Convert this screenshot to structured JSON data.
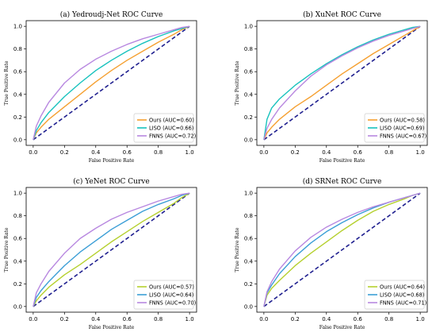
{
  "chart_data": [
    {
      "type": "line",
      "title": "(a) Yedroudj-Net ROC Curve",
      "xlabel": "False Positive Rate",
      "ylabel": "True Positive Rate",
      "xlim": [
        0,
        1
      ],
      "ylim": [
        0,
        1
      ],
      "xticks": [
        "0.0",
        "0.2",
        "0.4",
        "0.6",
        "0.8",
        "1.0"
      ],
      "yticks": [
        "0.0",
        "0.2",
        "0.4",
        "0.6",
        "0.8",
        "1.0"
      ],
      "legend_position": "bottom-right",
      "baseline": {
        "x": [
          0,
          1
        ],
        "y": [
          0,
          1
        ],
        "color": "#1f1f8f",
        "style": "dashed"
      },
      "series": [
        {
          "name": "Ours (AUC=0.60)",
          "color": "#f5a031",
          "x": [
            0,
            0.02,
            0.05,
            0.1,
            0.2,
            0.3,
            0.4,
            0.5,
            0.6,
            0.7,
            0.8,
            0.9,
            0.95,
            1.0
          ],
          "y": [
            0,
            0.06,
            0.11,
            0.18,
            0.29,
            0.4,
            0.51,
            0.61,
            0.7,
            0.78,
            0.86,
            0.93,
            0.97,
            1.0
          ]
        },
        {
          "name": "LISO (AUC=0.66)",
          "color": "#17c2bd",
          "x": [
            0,
            0.02,
            0.05,
            0.1,
            0.2,
            0.3,
            0.4,
            0.5,
            0.6,
            0.7,
            0.8,
            0.9,
            0.95,
            1.0
          ],
          "y": [
            0,
            0.08,
            0.15,
            0.24,
            0.38,
            0.5,
            0.61,
            0.7,
            0.78,
            0.85,
            0.91,
            0.96,
            0.98,
            1.0
          ]
        },
        {
          "name": "FNNS (AUC=0.72)",
          "color": "#b888e0",
          "x": [
            0,
            0.02,
            0.05,
            0.1,
            0.2,
            0.3,
            0.4,
            0.5,
            0.6,
            0.7,
            0.8,
            0.9,
            0.95,
            1.0
          ],
          "y": [
            0,
            0.12,
            0.21,
            0.33,
            0.5,
            0.62,
            0.71,
            0.78,
            0.84,
            0.89,
            0.93,
            0.97,
            0.99,
            1.0
          ]
        }
      ]
    },
    {
      "type": "line",
      "title": "(b) XuNet ROC Curve",
      "xlabel": "False Positive Rate",
      "ylabel": "True Positive Rate",
      "xlim": [
        0,
        1
      ],
      "ylim": [
        0,
        1
      ],
      "xticks": [
        "0.0",
        "0.2",
        "0.4",
        "0.6",
        "0.8",
        "1.0"
      ],
      "yticks": [
        "0.0",
        "0.2",
        "0.4",
        "0.6",
        "0.8",
        "1.0"
      ],
      "legend_position": "bottom-right",
      "baseline": {
        "x": [
          0,
          1
        ],
        "y": [
          0,
          1
        ],
        "color": "#1f1f8f",
        "style": "dashed"
      },
      "series": [
        {
          "name": "Ours (AUC=0.58)",
          "color": "#f5a031",
          "x": [
            0,
            0.02,
            0.05,
            0.1,
            0.2,
            0.3,
            0.4,
            0.5,
            0.6,
            0.7,
            0.8,
            0.9,
            0.95,
            1.0
          ],
          "y": [
            0,
            0.06,
            0.11,
            0.18,
            0.29,
            0.38,
            0.48,
            0.58,
            0.67,
            0.76,
            0.84,
            0.92,
            0.96,
            1.0
          ]
        },
        {
          "name": "LISO (AUC=0.69)",
          "color": "#17c2bd",
          "x": [
            0,
            0.02,
            0.05,
            0.1,
            0.2,
            0.3,
            0.4,
            0.5,
            0.6,
            0.7,
            0.8,
            0.9,
            0.95,
            1.0
          ],
          "y": [
            0,
            0.18,
            0.28,
            0.36,
            0.48,
            0.58,
            0.67,
            0.75,
            0.82,
            0.88,
            0.93,
            0.97,
            0.99,
            1.0
          ]
        },
        {
          "name": "FNNS (AUC=0.67)",
          "color": "#b888e0",
          "x": [
            0,
            0.02,
            0.05,
            0.1,
            0.2,
            0.3,
            0.4,
            0.5,
            0.6,
            0.7,
            0.8,
            0.9,
            0.95,
            1.0
          ],
          "y": [
            0,
            0.1,
            0.18,
            0.28,
            0.43,
            0.56,
            0.66,
            0.74,
            0.81,
            0.87,
            0.92,
            0.96,
            0.98,
            1.0
          ]
        }
      ]
    },
    {
      "type": "line",
      "title": "(c) YeNet ROC Curve",
      "xlabel": "False Positive Rate",
      "ylabel": "True Positive Rate",
      "xlim": [
        0,
        1
      ],
      "ylim": [
        0,
        1
      ],
      "xticks": [
        "0.0",
        "0.2",
        "0.4",
        "0.6",
        "0.8",
        "1.0"
      ],
      "yticks": [
        "0.0",
        "0.2",
        "0.4",
        "0.6",
        "0.8",
        "1.0"
      ],
      "legend_position": "bottom-right",
      "baseline": {
        "x": [
          0,
          1
        ],
        "y": [
          0,
          1
        ],
        "color": "#1f1f8f",
        "style": "dashed"
      },
      "series": [
        {
          "name": "Ours (AUC=0.57)",
          "color": "#b5d02e",
          "x": [
            0,
            0.02,
            0.05,
            0.1,
            0.2,
            0.3,
            0.4,
            0.5,
            0.6,
            0.7,
            0.8,
            0.9,
            0.95,
            1.0
          ],
          "y": [
            0,
            0.05,
            0.1,
            0.17,
            0.28,
            0.37,
            0.47,
            0.57,
            0.66,
            0.75,
            0.83,
            0.91,
            0.96,
            1.0
          ]
        },
        {
          "name": "LISO (AUC=0.64)",
          "color": "#3b9ed6",
          "x": [
            0,
            0.02,
            0.05,
            0.1,
            0.2,
            0.3,
            0.4,
            0.5,
            0.6,
            0.7,
            0.8,
            0.9,
            0.95,
            1.0
          ],
          "y": [
            0,
            0.08,
            0.14,
            0.22,
            0.36,
            0.48,
            0.58,
            0.68,
            0.76,
            0.84,
            0.9,
            0.95,
            0.98,
            1.0
          ]
        },
        {
          "name": "FNNS (AUC=0.70)",
          "color": "#b888e0",
          "x": [
            0,
            0.02,
            0.05,
            0.1,
            0.2,
            0.3,
            0.4,
            0.5,
            0.6,
            0.7,
            0.8,
            0.9,
            0.95,
            1.0
          ],
          "y": [
            0,
            0.12,
            0.2,
            0.31,
            0.47,
            0.6,
            0.69,
            0.77,
            0.83,
            0.88,
            0.93,
            0.97,
            0.99,
            1.0
          ]
        }
      ]
    },
    {
      "type": "line",
      "title": "(d) SRNet ROC Curve",
      "xlabel": "False Positive Rate",
      "ylabel": "True Positive Rate",
      "xlim": [
        0,
        1
      ],
      "ylim": [
        0,
        1
      ],
      "xticks": [
        "0.0",
        "0.2",
        "0.4",
        "0.6",
        "0.8",
        "1.0"
      ],
      "yticks": [
        "0.0",
        "0.2",
        "0.4",
        "0.6",
        "0.8",
        "1.0"
      ],
      "legend_position": "bottom-right",
      "baseline": {
        "x": [
          0,
          1
        ],
        "y": [
          0,
          1
        ],
        "color": "#1f1f8f",
        "style": "dashed"
      },
      "series": [
        {
          "name": "Ours (AUC=0.64)",
          "color": "#b5d02e",
          "x": [
            0,
            0.02,
            0.05,
            0.1,
            0.2,
            0.3,
            0.4,
            0.5,
            0.6,
            0.7,
            0.8,
            0.9,
            0.95,
            1.0
          ],
          "y": [
            0,
            0.1,
            0.16,
            0.23,
            0.36,
            0.47,
            0.57,
            0.67,
            0.76,
            0.84,
            0.9,
            0.95,
            0.98,
            1.0
          ]
        },
        {
          "name": "LISO (AUC=0.68)",
          "color": "#3b9ed6",
          "x": [
            0,
            0.02,
            0.05,
            0.1,
            0.2,
            0.3,
            0.4,
            0.5,
            0.6,
            0.7,
            0.8,
            0.9,
            0.95,
            1.0
          ],
          "y": [
            0,
            0.12,
            0.19,
            0.29,
            0.44,
            0.56,
            0.66,
            0.74,
            0.81,
            0.87,
            0.92,
            0.96,
            0.98,
            1.0
          ]
        },
        {
          "name": "FNNS (AUC=0.71)",
          "color": "#b888e0",
          "x": [
            0,
            0.02,
            0.05,
            0.1,
            0.2,
            0.3,
            0.4,
            0.5,
            0.6,
            0.7,
            0.8,
            0.9,
            0.95,
            1.0
          ],
          "y": [
            0,
            0.13,
            0.22,
            0.33,
            0.49,
            0.61,
            0.7,
            0.77,
            0.83,
            0.88,
            0.92,
            0.96,
            0.98,
            1.0
          ]
        }
      ]
    }
  ]
}
